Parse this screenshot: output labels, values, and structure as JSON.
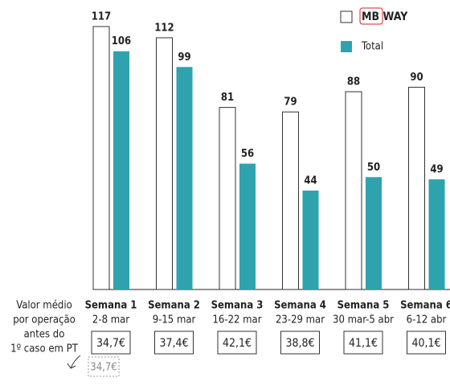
{
  "chart_data": {
    "type": "bar",
    "categories": [
      "Semana 1",
      "Semana 2",
      "Semana 3",
      "Semana 4",
      "Semana 5",
      "Semana 6"
    ],
    "date_ranges": [
      "2-8 mar",
      "9-15 mar",
      "16-22 mar",
      "23-29 mar",
      "30 mar-5 abr",
      "6-12 abr"
    ],
    "series": [
      {
        "name": "MB WAY",
        "color": "#ffffff",
        "values": [
          117,
          112,
          81,
          79,
          88,
          90
        ]
      },
      {
        "name": "Total",
        "color": "#2ea3ae",
        "values": [
          106,
          99,
          56,
          44,
          50,
          49
        ]
      }
    ],
    "row_label": [
      "Valor médio",
      "por operação",
      "antes do",
      "1º caso em PT"
    ],
    "average_values": [
      "34,7€",
      "37,4€",
      "42,1€",
      "38,8€",
      "41,1€",
      "40,1€"
    ],
    "reference_value": "34,7€"
  }
}
